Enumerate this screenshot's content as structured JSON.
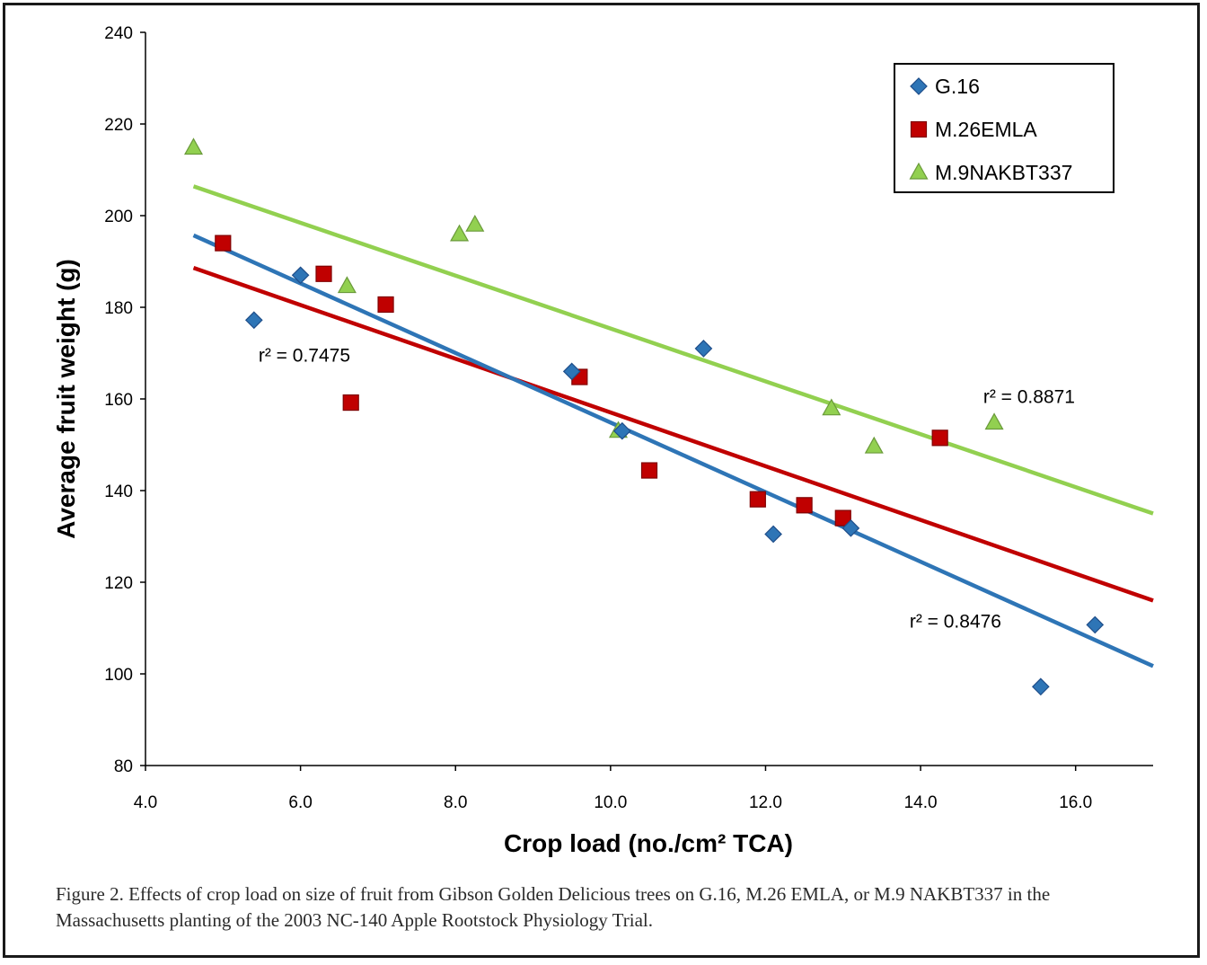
{
  "chart_data": {
    "type": "scatter",
    "xlabel": "Crop load (no./cm² TCA)",
    "ylabel": "Average fruit weight (g)",
    "xlim": [
      4.0,
      17.0
    ],
    "ylim": [
      80,
      240
    ],
    "xticks": [
      "4.0",
      "6.0",
      "8.0",
      "10.0",
      "12.0",
      "14.0",
      "16.0"
    ],
    "xtick_values": [
      4,
      6,
      8,
      10,
      12,
      14,
      16
    ],
    "yticks": [
      "80",
      "100",
      "120",
      "140",
      "160",
      "180",
      "200",
      "220",
      "240"
    ],
    "ytick_values": [
      80,
      100,
      120,
      140,
      160,
      180,
      200,
      220,
      240
    ],
    "grid": false,
    "legend_position": "top-right",
    "series": [
      {
        "name": "G.16",
        "marker": "diamond",
        "color": "#2e75b6",
        "points": [
          [
            5.4,
            177.2
          ],
          [
            6.0,
            187.0
          ],
          [
            9.5,
            166.0
          ],
          [
            10.15,
            153.0
          ],
          [
            11.2,
            171.0
          ],
          [
            12.1,
            130.5
          ],
          [
            13.1,
            131.8
          ],
          [
            15.55,
            97.2
          ],
          [
            16.25,
            110.7
          ]
        ],
        "trend": {
          "x": [
            4.62,
            17.0
          ],
          "y": [
            195.7,
            101.7
          ]
        },
        "r2": "r² = 0.8476"
      },
      {
        "name": "M.26EMLA",
        "marker": "square",
        "color": "#c00000",
        "points": [
          [
            5.0,
            194.0
          ],
          [
            6.3,
            187.3
          ],
          [
            6.65,
            159.2
          ],
          [
            7.1,
            180.6
          ],
          [
            9.6,
            164.8
          ],
          [
            10.5,
            144.4
          ],
          [
            11.9,
            138.1
          ],
          [
            12.5,
            136.8
          ],
          [
            13.0,
            134.0
          ],
          [
            14.25,
            151.5
          ]
        ],
        "trend": {
          "x": [
            4.62,
            17.0
          ],
          "y": [
            188.6,
            116.0
          ]
        },
        "r2": "r² = 0.7475"
      },
      {
        "name": "M.9NAKBT337",
        "marker": "triangle",
        "color": "#92d050",
        "points": [
          [
            4.62,
            214.8
          ],
          [
            6.6,
            184.6
          ],
          [
            8.05,
            195.9
          ],
          [
            8.25,
            198.0
          ],
          [
            10.1,
            153.0
          ],
          [
            12.85,
            157.9
          ],
          [
            13.4,
            149.6
          ],
          [
            14.95,
            154.8
          ]
        ],
        "trend": {
          "x": [
            4.62,
            17.0
          ],
          "y": [
            206.4,
            135.0
          ]
        },
        "r2": "r² = 0.8871"
      }
    ],
    "annotations": [
      {
        "text": "r² = 0.7475",
        "x": 6.55,
        "y": 169.5
      },
      {
        "text": "r² = 0.8871",
        "x": 15.35,
        "y": 160.0
      },
      {
        "text": "r² = 0.8476",
        "x": 14.45,
        "y": 190.0
      }
    ]
  },
  "caption": "Figure 2.  Effects of crop load on size of fruit from Gibson Golden Delicious trees on G.16, M.26 EMLA, or M.9 NAKBT337 in the Massachusetts planting of the 2003 NC-140 Apple Rootstock Physiology Trial."
}
